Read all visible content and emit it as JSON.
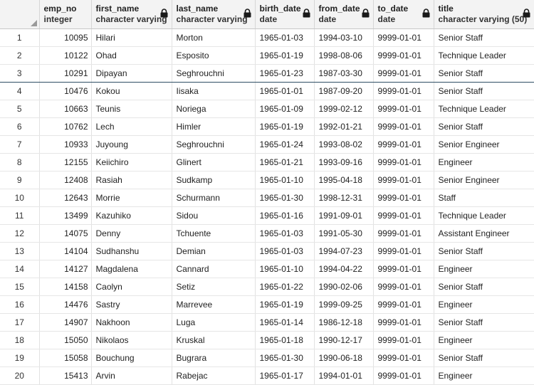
{
  "columns": [
    {
      "name": "emp_no",
      "type": "integer",
      "locked": false
    },
    {
      "name": "first_name",
      "type": "character varying",
      "locked": true
    },
    {
      "name": "last_name",
      "type": "character varying",
      "locked": true
    },
    {
      "name": "birth_date",
      "type": "date",
      "locked": true
    },
    {
      "name": "from_date",
      "type": "date",
      "locked": true
    },
    {
      "name": "to_date",
      "type": "date",
      "locked": true
    },
    {
      "name": "title",
      "type": "character varying (50)",
      "locked": true
    }
  ],
  "rows": [
    {
      "n": "1",
      "emp_no": "10095",
      "first_name": "Hilari",
      "last_name": "Morton",
      "birth_date": "1965-01-03",
      "from_date": "1994-03-10",
      "to_date": "9999-01-01",
      "title": "Senior Staff"
    },
    {
      "n": "2",
      "emp_no": "10122",
      "first_name": "Ohad",
      "last_name": "Esposito",
      "birth_date": "1965-01-19",
      "from_date": "1998-08-06",
      "to_date": "9999-01-01",
      "title": "Technique Leader"
    },
    {
      "n": "3",
      "emp_no": "10291",
      "first_name": "Dipayan",
      "last_name": "Seghrouchni",
      "birth_date": "1965-01-23",
      "from_date": "1987-03-30",
      "to_date": "9999-01-01",
      "title": "Senior Staff"
    },
    {
      "n": "4",
      "emp_no": "10476",
      "first_name": "Kokou",
      "last_name": "Iisaka",
      "birth_date": "1965-01-01",
      "from_date": "1987-09-20",
      "to_date": "9999-01-01",
      "title": "Senior Staff"
    },
    {
      "n": "5",
      "emp_no": "10663",
      "first_name": "Teunis",
      "last_name": "Noriega",
      "birth_date": "1965-01-09",
      "from_date": "1999-02-12",
      "to_date": "9999-01-01",
      "title": "Technique Leader"
    },
    {
      "n": "6",
      "emp_no": "10762",
      "first_name": "Lech",
      "last_name": "Himler",
      "birth_date": "1965-01-19",
      "from_date": "1992-01-21",
      "to_date": "9999-01-01",
      "title": "Senior Staff"
    },
    {
      "n": "7",
      "emp_no": "10933",
      "first_name": "Juyoung",
      "last_name": "Seghrouchni",
      "birth_date": "1965-01-24",
      "from_date": "1993-08-02",
      "to_date": "9999-01-01",
      "title": "Senior Engineer"
    },
    {
      "n": "8",
      "emp_no": "12155",
      "first_name": "Keiichiro",
      "last_name": "Glinert",
      "birth_date": "1965-01-21",
      "from_date": "1993-09-16",
      "to_date": "9999-01-01",
      "title": "Engineer"
    },
    {
      "n": "9",
      "emp_no": "12408",
      "first_name": "Rasiah",
      "last_name": "Sudkamp",
      "birth_date": "1965-01-10",
      "from_date": "1995-04-18",
      "to_date": "9999-01-01",
      "title": "Senior Engineer"
    },
    {
      "n": "10",
      "emp_no": "12643",
      "first_name": "Morrie",
      "last_name": "Schurmann",
      "birth_date": "1965-01-30",
      "from_date": "1998-12-31",
      "to_date": "9999-01-01",
      "title": "Staff"
    },
    {
      "n": "11",
      "emp_no": "13499",
      "first_name": "Kazuhiko",
      "last_name": "Sidou",
      "birth_date": "1965-01-16",
      "from_date": "1991-09-01",
      "to_date": "9999-01-01",
      "title": "Technique Leader"
    },
    {
      "n": "12",
      "emp_no": "14075",
      "first_name": "Denny",
      "last_name": "Tchuente",
      "birth_date": "1965-01-03",
      "from_date": "1991-05-30",
      "to_date": "9999-01-01",
      "title": "Assistant Engineer"
    },
    {
      "n": "13",
      "emp_no": "14104",
      "first_name": "Sudhanshu",
      "last_name": "Demian",
      "birth_date": "1965-01-03",
      "from_date": "1994-07-23",
      "to_date": "9999-01-01",
      "title": "Senior Staff"
    },
    {
      "n": "14",
      "emp_no": "14127",
      "first_name": "Magdalena",
      "last_name": "Cannard",
      "birth_date": "1965-01-10",
      "from_date": "1994-04-22",
      "to_date": "9999-01-01",
      "title": "Engineer"
    },
    {
      "n": "15",
      "emp_no": "14158",
      "first_name": "Caolyn",
      "last_name": "Setiz",
      "birth_date": "1965-01-22",
      "from_date": "1990-02-06",
      "to_date": "9999-01-01",
      "title": "Senior Staff"
    },
    {
      "n": "16",
      "emp_no": "14476",
      "first_name": "Sastry",
      "last_name": "Marrevee",
      "birth_date": "1965-01-19",
      "from_date": "1999-09-25",
      "to_date": "9999-01-01",
      "title": "Engineer"
    },
    {
      "n": "17",
      "emp_no": "14907",
      "first_name": "Nakhoon",
      "last_name": "Luga",
      "birth_date": "1965-01-14",
      "from_date": "1986-12-18",
      "to_date": "9999-01-01",
      "title": "Senior Staff"
    },
    {
      "n": "18",
      "emp_no": "15050",
      "first_name": "Nikolaos",
      "last_name": "Kruskal",
      "birth_date": "1965-01-18",
      "from_date": "1990-12-17",
      "to_date": "9999-01-01",
      "title": "Engineer"
    },
    {
      "n": "19",
      "emp_no": "15058",
      "first_name": "Bouchung",
      "last_name": "Bugrara",
      "birth_date": "1965-01-30",
      "from_date": "1990-06-18",
      "to_date": "9999-01-01",
      "title": "Senior Staff"
    },
    {
      "n": "20",
      "emp_no": "15413",
      "first_name": "Arvin",
      "last_name": "Rabejac",
      "birth_date": "1965-01-17",
      "from_date": "1994-01-01",
      "to_date": "9999-01-01",
      "title": "Engineer"
    }
  ],
  "selected_row": "3",
  "icons": {
    "lock": "lock-icon",
    "corner": "select-all-icon"
  },
  "colors": {
    "header_bg": "#f3f3f3",
    "selection_border": "#2f4f64"
  }
}
